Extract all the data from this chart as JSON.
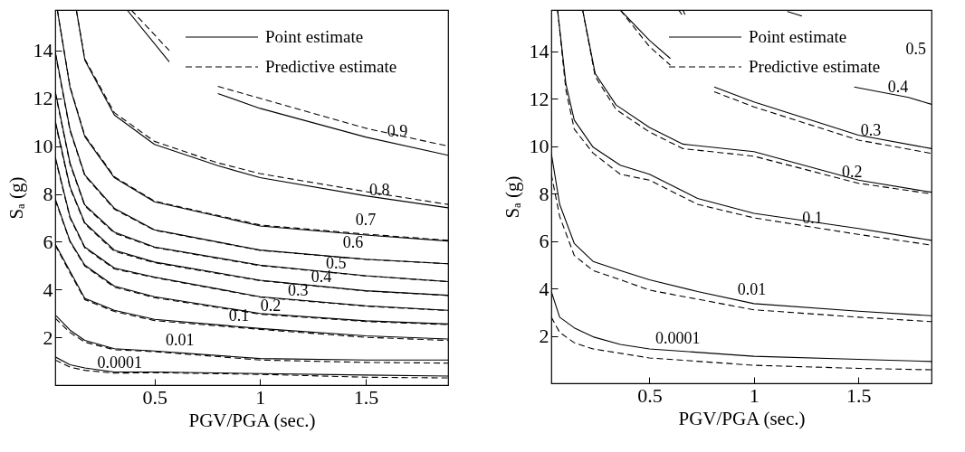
{
  "chart_data": [
    {
      "type": "line",
      "xlabel": "PGV/PGA (sec.)",
      "ylabel": "Sₐ (g)",
      "xlim": [
        0.03,
        1.89
      ],
      "ylim": [
        0,
        15.7
      ],
      "xticks": [
        0.5,
        1,
        1.5
      ],
      "yticks": [
        2,
        4,
        6,
        8,
        10,
        12,
        14
      ],
      "legend": "top right",
      "series": [
        {
          "name": "Point estimate",
          "color": "#000000",
          "line_style": "solid",
          "x": [
            0.03,
            0.1,
            0.17,
            0.31,
            0.5,
            1.0,
            1.5,
            1.89
          ],
          "values": [
            1.18,
            0.85,
            0.72,
            0.55,
            0.55,
            0.48,
            0.42,
            0.38
          ]
        },
        {
          "name": "Predictive estimate",
          "color": "#000000",
          "line_style": "dashed",
          "x": [
            0.03,
            0.1,
            0.17,
            0.31,
            0.5,
            1.0,
            1.5,
            1.89
          ],
          "values": [
            1.05,
            0.75,
            0.62,
            0.5,
            0.52,
            0.45,
            0.33,
            0.3
          ]
        },
        {
          "color": "#000000",
          "line_style": "solid",
          "x": [
            0.03,
            0.1,
            0.17,
            0.31,
            0.5,
            1.0,
            1.5,
            1.89
          ],
          "values": [
            2.94,
            2.3,
            1.87,
            1.52,
            1.43,
            1.11,
            1.05,
            1.05
          ]
        },
        {
          "color": "#000000",
          "line_style": "dashed",
          "x": [
            0.03,
            0.1,
            0.17,
            0.31,
            0.5,
            1.0,
            1.5,
            1.89
          ],
          "values": [
            2.8,
            2.2,
            1.8,
            1.48,
            1.4,
            1.05,
            0.95,
            0.92
          ]
        },
        {
          "color": "#000000",
          "line_style": "solid",
          "x": [
            0.03,
            0.1,
            0.17,
            0.31,
            0.5,
            1.0,
            1.5,
            1.89
          ],
          "values": [
            5.9,
            4.77,
            3.63,
            3.13,
            2.75,
            2.37,
            2.06,
            1.93
          ]
        },
        {
          "color": "#000000",
          "line_style": "dashed",
          "x": [
            0.03,
            0.1,
            0.17,
            0.31,
            0.5,
            1.0,
            1.5,
            1.89
          ],
          "values": [
            5.85,
            4.7,
            3.58,
            3.08,
            2.7,
            2.33,
            2.0,
            1.87
          ]
        },
        {
          "color": "#000000",
          "line_style": "solid",
          "x": [
            0.03,
            0.1,
            0.17,
            0.31,
            0.5,
            1.0,
            1.5,
            1.89
          ],
          "values": [
            7.8,
            6.03,
            5.02,
            4.14,
            3.7,
            3.0,
            2.69,
            2.56
          ]
        },
        {
          "color": "#000000",
          "line_style": "dashed",
          "x": [
            0.03,
            0.1,
            0.17,
            0.31,
            0.5,
            1.0,
            1.5,
            1.89
          ],
          "values": [
            7.75,
            6.0,
            4.98,
            4.1,
            3.66,
            2.97,
            2.66,
            2.53
          ]
        },
        {
          "color": "#000000",
          "line_style": "solid",
          "x": [
            0.03,
            0.1,
            0.17,
            0.31,
            0.5,
            1.0,
            1.5,
            1.89
          ],
          "values": [
            9.56,
            7.04,
            5.78,
            4.9,
            4.52,
            3.7,
            3.32,
            3.13
          ]
        },
        {
          "color": "#000000",
          "line_style": "dashed",
          "x": [
            0.03,
            0.1,
            0.17,
            0.31,
            0.5,
            1.0,
            1.5,
            1.89
          ],
          "values": [
            9.5,
            7.0,
            5.74,
            4.86,
            4.5,
            3.68,
            3.3,
            3.12
          ]
        },
        {
          "color": "#000000",
          "line_style": "solid",
          "x": [
            0.03,
            0.1,
            0.17,
            0.31,
            0.5,
            1.0,
            1.5,
            1.89
          ],
          "values": [
            11.07,
            8.3,
            6.79,
            5.65,
            5.15,
            4.39,
            3.95,
            3.76
          ]
        },
        {
          "color": "#000000",
          "line_style": "dashed",
          "x": [
            0.03,
            0.1,
            0.17,
            0.31,
            0.5,
            1.0,
            1.5,
            1.89
          ],
          "values": [
            11.0,
            8.25,
            6.75,
            5.6,
            5.12,
            4.37,
            3.94,
            3.75
          ]
        },
        {
          "color": "#000000",
          "line_style": "solid",
          "x": [
            0.03,
            0.1,
            0.17,
            0.31,
            0.5,
            1.0,
            1.5,
            1.89
          ],
          "values": [
            12.3,
            9.3,
            7.54,
            6.4,
            5.78,
            5.02,
            4.58,
            4.33
          ]
        },
        {
          "color": "#000000",
          "line_style": "dashed",
          "x": [
            0.03,
            0.1,
            0.17,
            0.31,
            0.5,
            1.0,
            1.5,
            1.89
          ],
          "values": [
            12.25,
            9.25,
            7.5,
            6.36,
            5.76,
            5.0,
            4.57,
            4.33
          ]
        },
        {
          "color": "#000000",
          "line_style": "solid",
          "x": [
            0.03,
            0.1,
            0.17,
            0.31,
            0.5,
            1.0,
            1.5,
            1.89
          ],
          "values": [
            13.97,
            10.7,
            8.8,
            7.4,
            6.5,
            5.65,
            5.27,
            5.08
          ]
        },
        {
          "color": "#000000",
          "line_style": "dashed",
          "x": [
            0.03,
            0.1,
            0.17,
            0.31,
            0.5,
            1.0,
            1.5,
            1.89
          ],
          "values": [
            13.9,
            10.65,
            8.76,
            7.36,
            6.48,
            5.64,
            5.26,
            5.08
          ]
        },
        {
          "color": "#000000",
          "line_style": "solid",
          "x": [
            0.04,
            0.1,
            0.17,
            0.31,
            0.5,
            1.0,
            1.5,
            1.89
          ],
          "values": [
            15.7,
            12.46,
            10.4,
            8.68,
            7.67,
            6.66,
            6.28,
            6.03
          ]
        },
        {
          "color": "#000000",
          "line_style": "dashed",
          "x": [
            0.04,
            0.1,
            0.17,
            0.31,
            0.5,
            1.0,
            1.5,
            1.89
          ],
          "values": [
            15.7,
            12.5,
            10.45,
            8.72,
            7.7,
            6.7,
            6.32,
            6.06
          ]
        },
        {
          "color": "#000000",
          "line_style": "solid",
          "x": [
            0.13,
            0.17,
            0.31,
            0.5,
            0.8,
            1.0,
            1.5,
            1.89
          ],
          "values": [
            15.7,
            13.6,
            11.3,
            10.07,
            9.18,
            8.68,
            7.92,
            7.42
          ]
        },
        {
          "color": "#000000",
          "line_style": "dashed",
          "x": [
            0.13,
            0.17,
            0.31,
            0.5,
            0.8,
            1.0,
            1.5,
            1.89
          ],
          "values": [
            15.7,
            13.65,
            11.4,
            10.2,
            9.3,
            8.85,
            8.1,
            7.56
          ]
        },
        {
          "color": "#000000",
          "line_style": "solid",
          "x": [
            0.37,
            0.57,
            0.7,
            0.8,
            1.0,
            1.5,
            1.89
          ],
          "values": [
            15.7,
            13.53,
            null,
            12.2,
            11.58,
            10.38,
            9.62
          ]
        },
        {
          "color": "#000000",
          "line_style": "dashed",
          "x": [
            0.39,
            0.57,
            0.7,
            0.8,
            1.0,
            1.5,
            1.89
          ],
          "values": [
            15.7,
            14.0,
            null,
            12.5,
            12.0,
            10.75,
            10.0
          ]
        }
      ],
      "annotations": [
        {
          "text": "0.9",
          "x": 1.65,
          "y": 10.19
        },
        {
          "text": "0.8",
          "x": 1.565,
          "y": 7.73
        },
        {
          "text": "0.7",
          "x": 1.5,
          "y": 6.47
        },
        {
          "text": "0.6",
          "x": 1.44,
          "y": 5.53
        },
        {
          "text": "0.5",
          "x": 1.36,
          "y": 4.64
        },
        {
          "text": "0.4",
          "x": 1.29,
          "y": 4.08
        },
        {
          "text": "0.3",
          "x": 1.18,
          "y": 3.51
        },
        {
          "text": "0.2",
          "x": 1.05,
          "y": 2.88
        },
        {
          "text": "0.1",
          "x": 0.9,
          "y": 2.45
        },
        {
          "text": "0.01",
          "x": 0.62,
          "y": 1.43
        },
        {
          "text": "0.0001",
          "x": 0.335,
          "y": 0.48
        }
      ]
    },
    {
      "type": "line",
      "xlabel": "PGV/PGA (sec.)",
      "ylabel": "Sₐ (g)",
      "xlim": [
        0.03,
        1.85
      ],
      "ylim": [
        0,
        15.75
      ],
      "xticks": [
        0.5,
        1,
        1.5
      ],
      "yticks": [
        2,
        4,
        6,
        8,
        10,
        12,
        14
      ],
      "legend": "top right",
      "series": [
        {
          "name": "Point estimate",
          "color": "#000000",
          "line_style": "solid",
          "x": [
            0.03,
            0.07,
            0.14,
            0.23,
            0.36,
            0.5,
            1.0,
            1.5,
            1.85
          ],
          "values": [
            3.87,
            2.79,
            2.34,
            1.96,
            1.64,
            1.45,
            1.14,
            1.01,
            0.92
          ]
        },
        {
          "name": "Predictive estimate",
          "color": "#000000",
          "line_style": "dashed",
          "x": [
            0.03,
            0.07,
            0.14,
            0.23,
            0.5,
            1.0,
            1.5,
            1.85
          ],
          "values": [
            2.79,
            2.15,
            1.71,
            1.45,
            1.07,
            0.76,
            0.63,
            0.57
          ]
        },
        {
          "color": "#000000",
          "line_style": "solid",
          "x": [
            0.03,
            0.07,
            0.14,
            0.23,
            0.36,
            0.5,
            0.73,
            1.0,
            1.5,
            1.85
          ],
          "values": [
            9.71,
            7.55,
            5.9,
            5.14,
            4.76,
            4.37,
            3.87,
            3.36,
            3.04,
            2.85
          ]
        },
        {
          "color": "#000000",
          "line_style": "dashed",
          "x": [
            0.03,
            0.07,
            0.14,
            0.23,
            0.36,
            0.5,
            1.0,
            1.5,
            1.85
          ],
          "values": [
            8.82,
            7.04,
            5.39,
            4.76,
            4.37,
            3.93,
            3.1,
            2.79,
            2.6
          ]
        },
        {
          "color": "#000000",
          "line_style": "solid",
          "x": [
            0.06,
            0.1,
            0.14,
            0.23,
            0.36,
            0.5,
            0.73,
            1.0,
            1.5,
            1.85
          ],
          "values": [
            15.75,
            12.63,
            11.1,
            9.96,
            9.2,
            8.82,
            7.8,
            7.17,
            6.53,
            6.03
          ]
        },
        {
          "color": "#000000",
          "line_style": "dashed",
          "x": [
            0.06,
            0.1,
            0.14,
            0.23,
            0.36,
            0.5,
            0.73,
            1.0,
            1.5,
            1.85
          ],
          "values": [
            15.75,
            12.37,
            10.72,
            9.71,
            8.82,
            8.57,
            7.55,
            6.98,
            6.28,
            5.83
          ]
        },
        {
          "color": "#000000",
          "line_style": "solid",
          "x": [
            0.18,
            0.24,
            0.34,
            0.5,
            0.66,
            1.0,
            1.5,
            1.85
          ],
          "values": [
            15.75,
            13.07,
            11.74,
            10.79,
            10.09,
            9.77,
            8.57,
            8.06
          ]
        },
        {
          "color": "#000000",
          "line_style": "dashed",
          "x": [
            0.18,
            0.24,
            0.34,
            0.5,
            0.66,
            1.0,
            1.5,
            1.85
          ],
          "values": [
            15.75,
            12.95,
            11.55,
            10.6,
            9.9,
            9.58,
            8.44,
            7.99
          ]
        },
        {
          "color": "#000000",
          "line_style": "solid",
          "x": [
            0.36,
            0.5,
            0.6,
            0.68,
            0.81,
            1.0,
            1.5,
            1.85
          ],
          "values": [
            15.75,
            14.47,
            13.7,
            null,
            12.5,
            11.87,
            10.47,
            9.9
          ]
        },
        {
          "color": "#000000",
          "line_style": "dashed",
          "x": [
            0.36,
            0.5,
            0.6,
            0.68,
            0.81,
            1.0,
            1.5,
            1.85
          ],
          "values": [
            15.75,
            14.2,
            13.42,
            null,
            12.3,
            11.66,
            10.26,
            9.7
          ]
        },
        {
          "color": "#000000",
          "line_style": "solid",
          "x": [
            0.66,
            0.67,
            1.0,
            1.48,
            1.74,
            1.85
          ],
          "values": [
            15.75,
            15.55,
            null,
            12.5,
            12.06,
            11.77
          ]
        },
        {
          "color": "#000000",
          "line_style": "dashed",
          "x": [
            0.64,
            0.655
          ],
          "values": [
            15.75,
            15.55
          ]
        },
        {
          "color": "#000000",
          "line_style": "solid",
          "x": [
            1.16,
            1.23
          ],
          "values": [
            15.68,
            15.49
          ]
        }
      ],
      "annotations": [
        "0.5",
        {
          "text": "0.4",
          "x": 1.69,
          "y": 12.06
        },
        {
          "text": "0.3",
          "x": 1.56,
          "y": 10.22
        },
        {
          "text": "0.2",
          "x": 1.47,
          "y": 8.46
        },
        {
          "text": "0.1",
          "x": 1.28,
          "y": 6.53
        },
        {
          "text": "0.01",
          "x": 0.99,
          "y": 3.51
        },
        {
          "text": "0.0001",
          "x": 0.636,
          "y": 1.45
        }
      ]
    }
  ]
}
